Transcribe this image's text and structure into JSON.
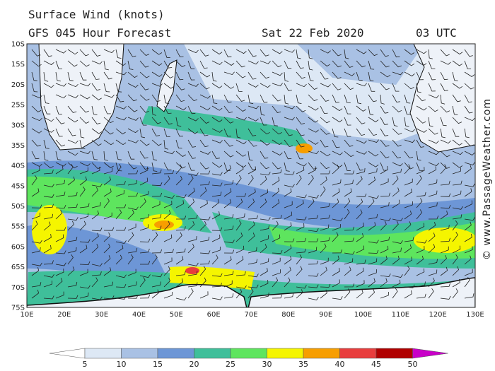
{
  "header": {
    "title": "Surface Wind (knots)",
    "subtitle": "GFS 045 Hour Forecast",
    "date": "Sat 22 Feb 2020",
    "time": "03 UTC"
  },
  "map": {
    "lat_labels": [
      "10S",
      "15S",
      "20S",
      "25S",
      "30S",
      "35S",
      "40S",
      "45S",
      "50S",
      "55S",
      "60S",
      "65S",
      "70S",
      "75S"
    ],
    "lon_labels": [
      "10E",
      "20E",
      "30E",
      "40E",
      "50E",
      "60E",
      "70E",
      "80E",
      "90E",
      "100E",
      "110E",
      "120E",
      "130E"
    ]
  },
  "legend": {
    "labels": [
      5,
      10,
      15,
      20,
      25,
      30,
      35,
      40,
      45,
      50
    ],
    "colors": [
      "#ffffff",
      "#dde8f5",
      "#a9c1e4",
      "#6d96d6",
      "#3fbf9a",
      "#5ee55e",
      "#f5f500",
      "#f79e00",
      "#e83d3d",
      "#b00000",
      "#c800c8"
    ]
  },
  "credit": "© www.PassageWeather.com"
}
